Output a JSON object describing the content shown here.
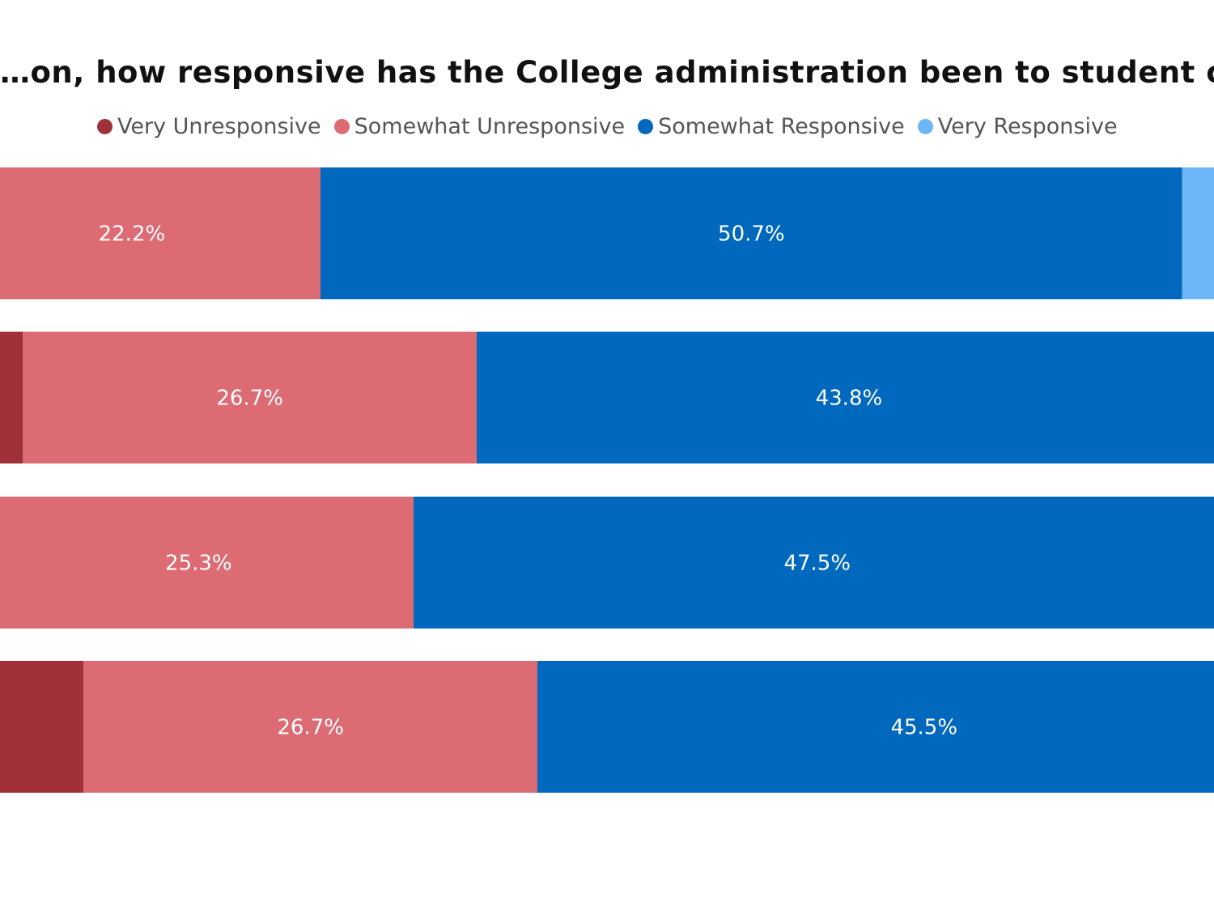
{
  "chart_data": {
    "type": "bar",
    "orientation": "horizontal",
    "stacked": true,
    "title": "…on, how responsive has the College administration been to student concerns dur…",
    "legend_position": "top",
    "series": [
      {
        "name": "Very Unresponsive",
        "color": "#a0313a",
        "values": [
          0,
          1.9,
          0,
          6.9
        ]
      },
      {
        "name": "Somewhat Unresponsive",
        "color": "#dc6b73",
        "values": [
          22.2,
          26.7,
          25.3,
          26.7
        ]
      },
      {
        "name": "Somewhat Responsive",
        "color": "#0068bd",
        "values": [
          50.7,
          43.8,
          47.5,
          45.5
        ]
      },
      {
        "name": "Very Responsive",
        "color": "#6cb5f7",
        "values": [
          3.7,
          0,
          0,
          0
        ]
      }
    ],
    "data_labels": [
      [
        "",
        "22.2%",
        "50.7%",
        ""
      ],
      [
        "",
        "26.7%",
        "43.8%",
        ""
      ],
      [
        "",
        "25.3%",
        "47.5%",
        ""
      ],
      [
        "",
        "26.7%",
        "45.5%",
        ""
      ]
    ]
  }
}
